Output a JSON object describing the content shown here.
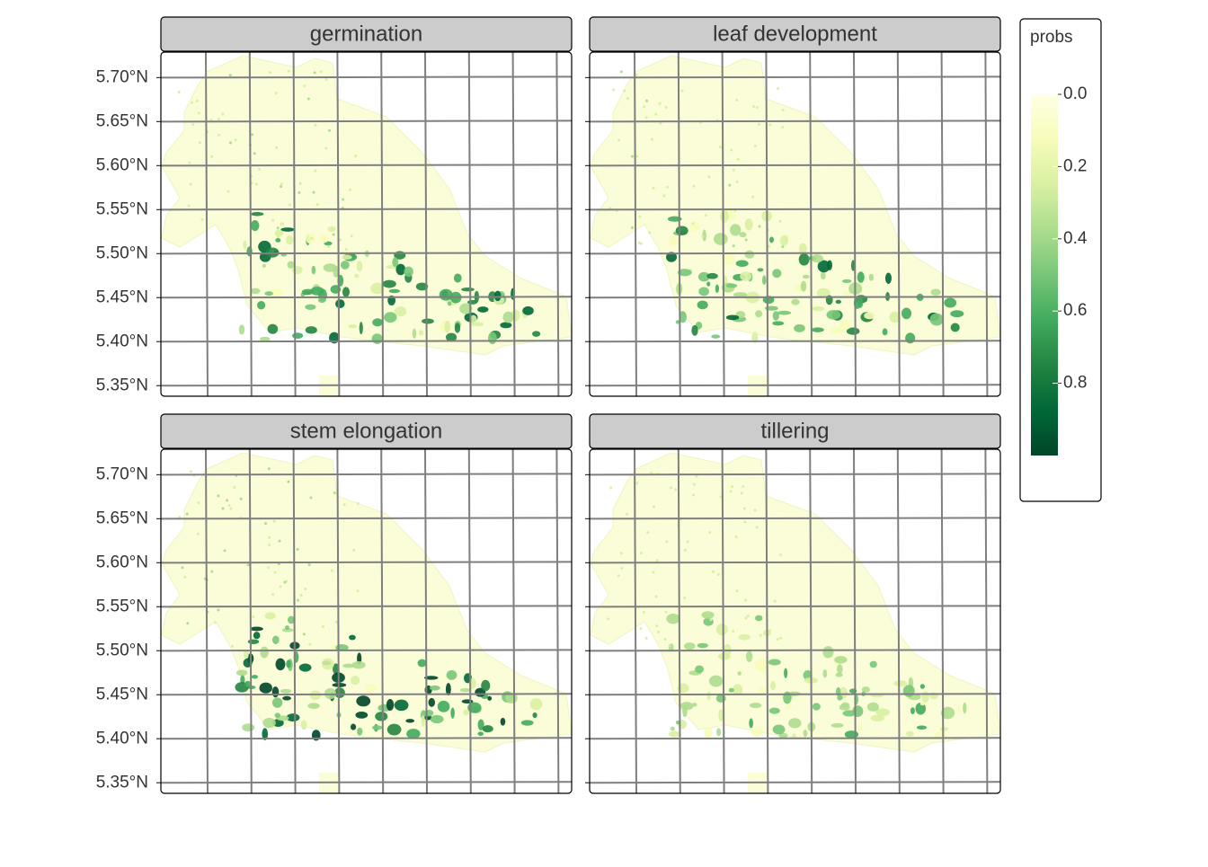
{
  "chart_data": {
    "type": "facet-map",
    "panels": [
      "germination",
      "leaf development",
      "stem elongation",
      "tillering"
    ],
    "ylim": [
      5.338,
      5.729
    ],
    "yticks": [
      {
        "value": 5.7,
        "label": "5.70°N"
      },
      {
        "value": 5.65,
        "label": "5.65°N"
      },
      {
        "value": 5.6,
        "label": "5.60°N"
      },
      {
        "value": 5.55,
        "label": "5.55°N"
      },
      {
        "value": 5.5,
        "label": "5.50°N"
      },
      {
        "value": 5.45,
        "label": "5.45°N"
      },
      {
        "value": 5.4,
        "label": "5.40°N"
      },
      {
        "value": 5.35,
        "label": "5.35°N"
      }
    ],
    "legend": {
      "title": "probs",
      "lim": [
        0,
        1
      ],
      "ticks": [
        {
          "value": 0,
          "label": "0.0"
        },
        {
          "value": 0.2,
          "label": "0.2"
        },
        {
          "value": 0.4,
          "label": "0.4"
        },
        {
          "value": 0.6,
          "label": "0.6"
        },
        {
          "value": 0.8,
          "label": "0.8"
        }
      ],
      "colors": [
        "#ffffe5",
        "#f7fcb9",
        "#d9f0a3",
        "#addd8e",
        "#78c679",
        "#41ab5d",
        "#238443",
        "#006837",
        "#004529"
      ]
    }
  }
}
